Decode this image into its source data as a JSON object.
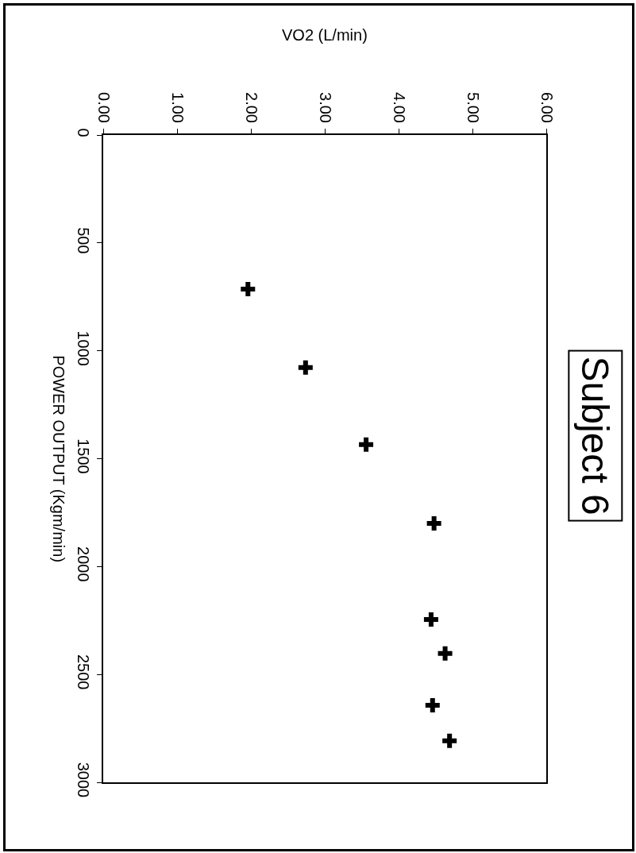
{
  "chart_data": {
    "type": "scatter",
    "title": "Subject 6",
    "xlabel": "VO2 (L/min)",
    "ylabel": "POWER OUTPUT (Kgm/min)",
    "x": [
      1.96,
      2.74,
      3.56,
      4.48,
      4.44,
      4.63,
      4.46,
      4.69
    ],
    "series": [
      {
        "color": "#000000",
        "values": [
          714,
          1078,
          1435,
          1800,
          2245,
          2403,
          2643,
          2808
        ]
      }
    ],
    "xlim": [
      0,
      6
    ],
    "xticks": [
      {
        "value": 0,
        "label": "0.00"
      },
      {
        "value": 1,
        "label": "1.00"
      },
      {
        "value": 2,
        "label": "2.00"
      },
      {
        "value": 3,
        "label": "3.00"
      },
      {
        "value": 4,
        "label": "4.00"
      },
      {
        "value": 5,
        "label": "5.00"
      },
      {
        "value": 6,
        "label": "6.00"
      }
    ],
    "ylim": [
      3000,
      0
    ],
    "yticks": [
      0,
      500,
      1000,
      1500,
      2000,
      2500,
      3000
    ],
    "marker": "cross",
    "grid": false
  }
}
